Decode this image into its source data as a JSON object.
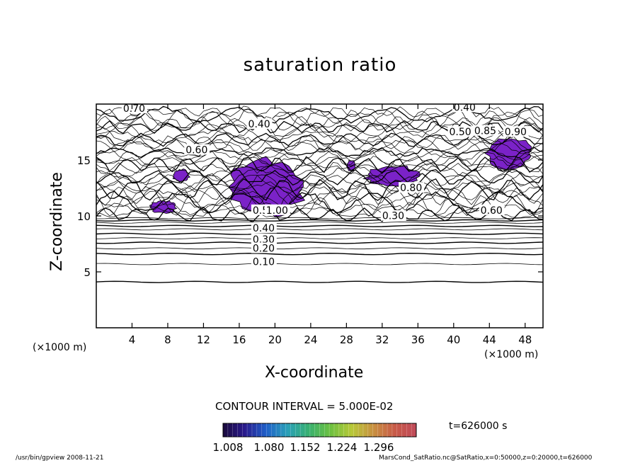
{
  "figure": {
    "title": "saturation ratio",
    "contour_interval_text": "CONTOUR INTERVAL = 5.000E-02",
    "time_text": "t=626000 s",
    "footer_left": "/usr/bin/gpview  2008-11-21",
    "footer_right": "MarsCond_SatRatio.nc@SatRatio,x=0:50000,z=0:20000,t=626000"
  },
  "chart_data": {
    "type": "heatmap",
    "title": "saturation ratio",
    "xlabel": "X-coordinate",
    "ylabel": "Z-coordinate",
    "x_unit_label": "(×1000 m)",
    "x_unit_label_right": "(×1000 m)",
    "xlim": [
      0,
      50
    ],
    "ylim": [
      0,
      20
    ],
    "x_ticks": [
      "4",
      "8",
      "12",
      "16",
      "20",
      "24",
      "28",
      "32",
      "36",
      "40",
      "44",
      "48"
    ],
    "y_ticks": [
      "5",
      "10",
      "15"
    ],
    "contour_interval": 0.05,
    "colorbar": {
      "ticks": [
        "1.008",
        "1.080",
        "1.152",
        "1.224",
        "1.296"
      ],
      "colors": [
        "#1a0a3c",
        "#2a1a8c",
        "#1f5fc8",
        "#2aa0b8",
        "#38b070",
        "#6cc040",
        "#b8c838",
        "#c89040",
        "#c85a48",
        "#c04a5a"
      ]
    },
    "fill_color": "#7b22c8",
    "supersaturated_regions": [
      {
        "x": [
          14.5,
          23.5
        ],
        "z": [
          10.0,
          15.2
        ]
      },
      {
        "x": [
          30.0,
          36.5
        ],
        "z": [
          12.6,
          14.5
        ]
      },
      {
        "x": [
          43.5,
          49.0
        ],
        "z": [
          14.2,
          17.0
        ]
      },
      {
        "x": [
          6.0,
          9.0
        ],
        "z": [
          10.2,
          11.4
        ]
      },
      {
        "x": [
          8.5,
          10.5
        ],
        "z": [
          13.0,
          14.2
        ]
      },
      {
        "x": [
          28.0,
          29.0
        ],
        "z": [
          14.0,
          15.0
        ]
      }
    ],
    "contour_labels": [
      {
        "text": "0.70",
        "x": 3.0,
        "z": 19.3
      },
      {
        "text": "0.40",
        "x": 17.0,
        "z": 17.9
      },
      {
        "text": "0.40",
        "x": 40.0,
        "z": 19.4
      },
      {
        "text": "0.50",
        "x": 39.5,
        "z": 17.2
      },
      {
        "text": "0.85",
        "x": 42.3,
        "z": 17.3
      },
      {
        "text": "0.90",
        "x": 45.7,
        "z": 17.2
      },
      {
        "text": "0.60",
        "x": 10.0,
        "z": 15.6
      },
      {
        "text": "0.50",
        "x": 17.5,
        "z": 10.2
      },
      {
        "text": "0.40",
        "x": 17.5,
        "z": 8.6
      },
      {
        "text": "0.30",
        "x": 17.5,
        "z": 7.6
      },
      {
        "text": "0.20",
        "x": 17.5,
        "z": 6.8
      },
      {
        "text": "0.10",
        "x": 17.5,
        "z": 5.6
      },
      {
        "text": "1.00",
        "x": 19.0,
        "z": 10.2
      },
      {
        "text": "0.60",
        "x": 43.0,
        "z": 10.2
      },
      {
        "text": "0.30",
        "x": 32.0,
        "z": 9.7
      },
      {
        "text": "0.80",
        "x": 34.0,
        "z": 12.2
      }
    ],
    "horizontal_contours_z": [
      4.1,
      5.7,
      6.6,
      7.1,
      7.6,
      8.0,
      8.4,
      8.8,
      9.1,
      9.4,
      9.6,
      9.8
    ],
    "grid": false
  }
}
